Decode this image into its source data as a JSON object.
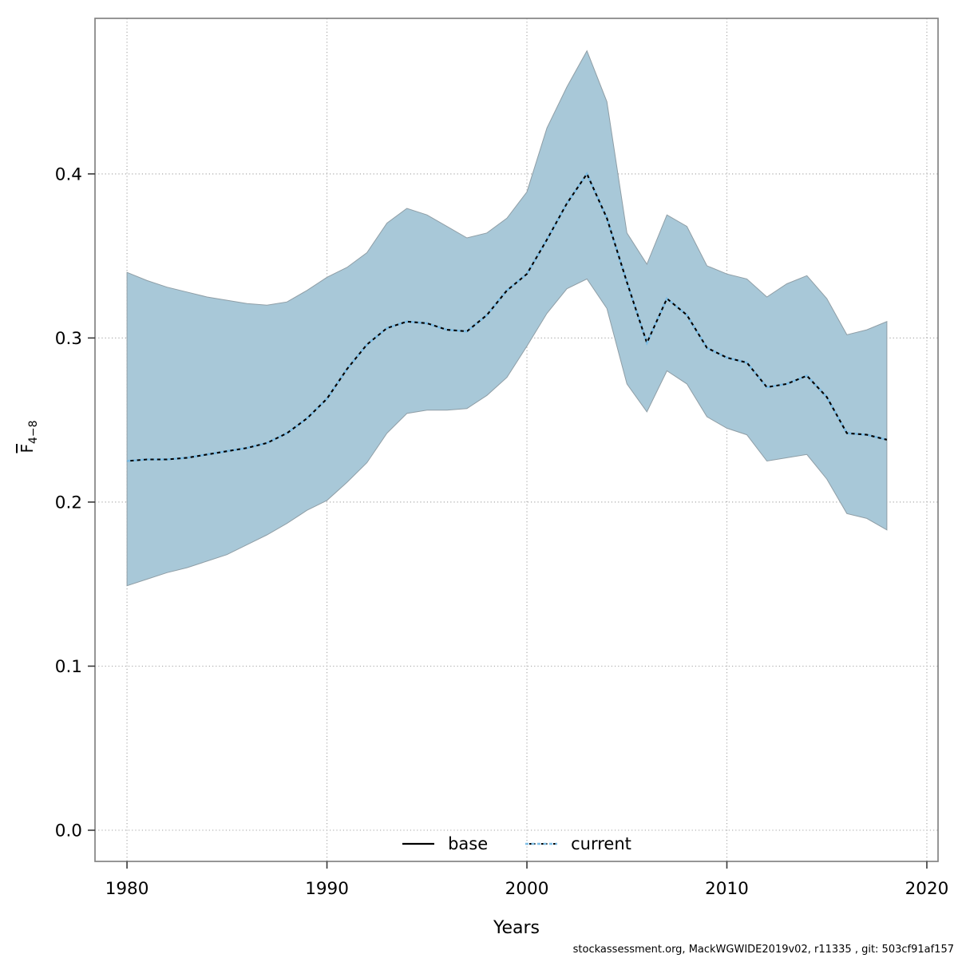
{
  "figure": {
    "background": "#ffffff",
    "footer_text": "stockassessment.org, MackWGWIDE2019v02, r11335 , git: 503cf91af157"
  },
  "chart_data": {
    "type": "area",
    "title": "",
    "xlabel": "Years",
    "ylabel": {
      "main": "F",
      "sub": "4−8",
      "overline_on_main": true
    },
    "xlim": [
      1978.4,
      2020.56
    ],
    "ylim": [
      -0.019,
      0.4948
    ],
    "grid": "dotted",
    "xticks": {
      "values": [
        1980,
        1990,
        2000,
        2010,
        2020
      ],
      "labels": [
        "1980",
        "1990",
        "2000",
        "2010",
        "2020"
      ]
    },
    "yticks": {
      "values": [
        0.0,
        0.1,
        0.2,
        0.3,
        0.4
      ],
      "labels": [
        "0.0",
        "0.1",
        "0.2",
        "0.3",
        "0.4"
      ]
    },
    "legend": {
      "position": "bottom-center-inside",
      "entries": [
        {
          "label": "base",
          "line": "solid",
          "color": "#000000"
        },
        {
          "label": "current",
          "line": "dotted",
          "color": "#7DBEE6"
        }
      ]
    },
    "colors": {
      "band_fill": "#A8C8D8",
      "band_edge": "#8f9ea6",
      "base_line": "#000000",
      "current_line": "#7DBEE6",
      "frame": "#838383",
      "gridline": "#ababab",
      "tick": "#383838"
    },
    "x": [
      1980,
      1981,
      1982,
      1983,
      1984,
      1985,
      1986,
      1987,
      1988,
      1989,
      1990,
      1991,
      1992,
      1993,
      1994,
      1995,
      1996,
      1997,
      1998,
      1999,
      2000,
      2001,
      2002,
      2003,
      2004,
      2005,
      2006,
      2007,
      2008,
      2009,
      2010,
      2011,
      2012,
      2013,
      2014,
      2015,
      2016,
      2017,
      2018
    ],
    "series": [
      {
        "name": "base",
        "values": [
          0.225,
          0.226,
          0.226,
          0.227,
          0.229,
          0.231,
          0.233,
          0.236,
          0.242,
          0.251,
          0.263,
          0.281,
          0.296,
          0.306,
          0.31,
          0.309,
          0.305,
          0.304,
          0.314,
          0.329,
          0.339,
          0.36,
          0.382,
          0.4,
          0.373,
          0.334,
          0.297,
          0.324,
          0.314,
          0.294,
          0.288,
          0.285,
          0.27,
          0.272,
          0.277,
          0.264,
          0.242,
          0.241,
          0.238
        ]
      },
      {
        "name": "current",
        "values": [
          0.225,
          0.226,
          0.226,
          0.227,
          0.229,
          0.231,
          0.233,
          0.236,
          0.242,
          0.251,
          0.263,
          0.281,
          0.296,
          0.306,
          0.31,
          0.309,
          0.305,
          0.304,
          0.314,
          0.329,
          0.339,
          0.36,
          0.382,
          0.4,
          0.373,
          0.334,
          0.297,
          0.324,
          0.314,
          0.294,
          0.288,
          0.285,
          0.27,
          0.272,
          0.277,
          0.264,
          0.242,
          0.241,
          0.238
        ]
      }
    ],
    "band": {
      "belongs_to": "current",
      "upper": [
        0.34,
        0.335,
        0.331,
        0.328,
        0.325,
        0.323,
        0.321,
        0.32,
        0.322,
        0.329,
        0.337,
        0.343,
        0.352,
        0.37,
        0.379,
        0.375,
        0.368,
        0.361,
        0.364,
        0.373,
        0.389,
        0.428,
        0.453,
        0.475,
        0.444,
        0.364,
        0.345,
        0.375,
        0.368,
        0.344,
        0.339,
        0.336,
        0.325,
        0.333,
        0.338,
        0.324,
        0.302,
        0.305,
        0.31
      ],
      "lower": [
        0.149,
        0.153,
        0.157,
        0.16,
        0.164,
        0.168,
        0.174,
        0.18,
        0.187,
        0.195,
        0.201,
        0.212,
        0.224,
        0.242,
        0.254,
        0.256,
        0.256,
        0.257,
        0.265,
        0.276,
        0.295,
        0.315,
        0.33,
        0.336,
        0.318,
        0.272,
        0.255,
        0.28,
        0.272,
        0.252,
        0.245,
        0.241,
        0.225,
        0.227,
        0.229,
        0.214,
        0.193,
        0.19,
        0.183
      ]
    }
  }
}
